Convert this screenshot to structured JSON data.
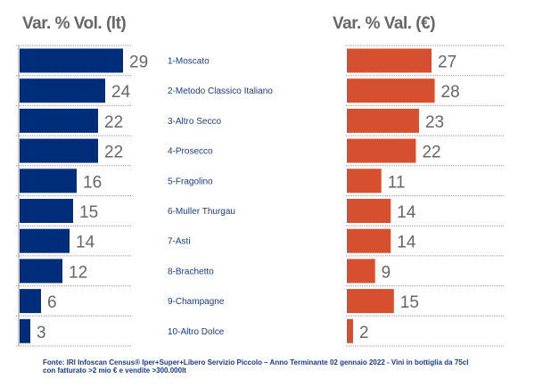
{
  "chart_data": [
    {
      "type": "bar",
      "orientation": "horizontal",
      "title": "Var. % Vol. (lt)",
      "color": "#002d7a",
      "categories": [
        "1-Moscato",
        "2-Metodo Classico Italiano",
        "3-Altro Secco",
        "4-Prosecco",
        "5-Fragolino",
        "6-Muller Thurgau",
        "7-Asti",
        "8-Brachetto",
        "9-Champagne",
        "10-Altro Dolce"
      ],
      "values": [
        29,
        24,
        22,
        22,
        16,
        15,
        14,
        12,
        6,
        3
      ]
    },
    {
      "type": "bar",
      "orientation": "horizontal",
      "title": "Var. % Val. (€)",
      "color": "#d64f2e",
      "categories": [
        "1-Moscato",
        "2-Metodo Classico Italiano",
        "3-Altro Secco",
        "4-Prosecco",
        "5-Fragolino",
        "6-Muller Thurgau",
        "7-Asti",
        "8-Brachetto",
        "9-Champagne",
        "10-Altro Dolce"
      ],
      "values": [
        27,
        28,
        23,
        22,
        11,
        14,
        14,
        9,
        15,
        2
      ]
    }
  ],
  "source": {
    "line1": "Fonte: IRI Infoscan Census® Iper+Super+Libero Servizio Piccolo – Anno Terminante 02 gennaio 2022  - Vini in bottiglia da 75cl",
    "line2": "con fatturato >2 mio € e vendite >300.000lt"
  }
}
